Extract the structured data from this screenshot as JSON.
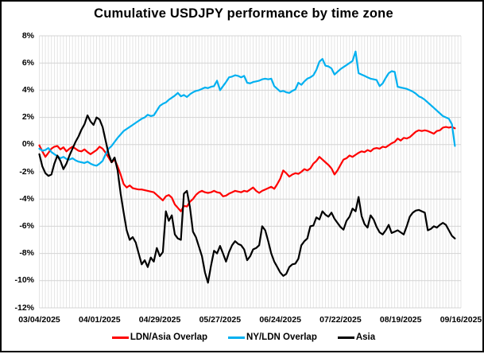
{
  "chart_data": {
    "type": "line",
    "title": "Cumulative USDJPY performance by time zone",
    "x_tick_labels": [
      "03/04/2025",
      "04/01/2025",
      "04/29/2025",
      "05/27/2025",
      "06/24/2025",
      "07/22/2025",
      "08/19/2025",
      "09/16/2025"
    ],
    "x_tick_every": 20,
    "n_categories": 141,
    "y_tick_labels": [
      "8%",
      "6%",
      "4%",
      "2%",
      "0%",
      "-2%",
      "-4%",
      "-6%",
      "-8%",
      "-10%",
      "-12%"
    ],
    "ylim": [
      -12,
      8
    ],
    "y_step": 2,
    "grid": {
      "vertical": "per-trading-day",
      "horizontal": "every-2-percent"
    },
    "legend_position": "bottom",
    "series": [
      {
        "name": "LDN/Asia Overlap",
        "color": "#fe0000",
        "values": [
          -0.05,
          -0.5,
          -0.9,
          -0.6,
          -0.3,
          -0.15,
          -0.1,
          -0.35,
          -0.2,
          -0.5,
          -0.3,
          -0.15,
          -0.3,
          -0.45,
          -0.5,
          -0.35,
          -0.55,
          -0.7,
          -0.55,
          -0.4,
          -0.15,
          -0.3,
          -0.6,
          -0.95,
          -1.3,
          -1.1,
          -1.6,
          -2.2,
          -2.9,
          -3.15,
          -3.0,
          -3.2,
          -3.25,
          -3.3,
          -3.3,
          -3.35,
          -3.4,
          -3.45,
          -3.5,
          -3.7,
          -3.9,
          -4.1,
          -3.8,
          -3.7,
          -3.9,
          -4.4,
          -4.65,
          -4.9,
          -4.5,
          -4.55,
          -4.2,
          -4.0,
          -3.7,
          -3.5,
          -3.4,
          -3.5,
          -3.55,
          -3.5,
          -3.4,
          -3.5,
          -3.55,
          -3.8,
          -3.75,
          -3.6,
          -3.5,
          -3.4,
          -3.45,
          -3.5,
          -3.4,
          -3.45,
          -3.3,
          -3.15,
          -3.4,
          -3.55,
          -3.4,
          -3.3,
          -3.2,
          -3.1,
          -3.25,
          -2.9,
          -2.5,
          -1.9,
          -2.1,
          -2.35,
          -2.2,
          -2.1,
          -2.15,
          -2.0,
          -1.8,
          -1.9,
          -1.75,
          -1.4,
          -1.2,
          -0.9,
          -1.1,
          -1.3,
          -1.5,
          -1.75,
          -2.2,
          -1.9,
          -1.5,
          -1.1,
          -1.0,
          -0.8,
          -0.9,
          -0.75,
          -0.6,
          -0.5,
          -0.55,
          -0.4,
          -0.5,
          -0.3,
          -0.25,
          -0.3,
          -0.15,
          -0.2,
          -0.05,
          0.1,
          0.2,
          0.45,
          0.3,
          0.5,
          0.45,
          0.55,
          0.75,
          0.95,
          1.05,
          1.0,
          1.05,
          1.0,
          0.9,
          0.8,
          1.0,
          1.05,
          1.25,
          1.3,
          1.25,
          1.3,
          1.2
        ]
      },
      {
        "name": "NY/LDN Overlap",
        "color": "#00b0f0",
        "values": [
          -0.3,
          -0.45,
          -0.4,
          -0.25,
          -0.55,
          -0.7,
          -0.85,
          -1.0,
          -0.9,
          -1.05,
          -1.1,
          -1.0,
          -1.15,
          -1.25,
          -1.3,
          -1.35,
          -1.25,
          -1.4,
          -1.5,
          -1.55,
          -1.4,
          -1.2,
          -0.7,
          -0.3,
          -0.1,
          0.2,
          0.5,
          0.75,
          1.0,
          1.15,
          1.3,
          1.45,
          1.6,
          1.75,
          1.9,
          2.0,
          2.2,
          2.1,
          2.15,
          2.5,
          2.85,
          3.0,
          3.1,
          3.3,
          3.45,
          3.6,
          3.8,
          3.55,
          3.65,
          3.5,
          3.7,
          3.85,
          3.95,
          4.0,
          4.1,
          4.2,
          4.15,
          4.25,
          4.3,
          4.7,
          4.0,
          4.3,
          4.6,
          4.95,
          5.0,
          5.1,
          5.05,
          4.95,
          5.05,
          4.55,
          4.5,
          4.6,
          4.65,
          4.7,
          4.8,
          4.85,
          4.8,
          4.85,
          4.3,
          4.1,
          3.9,
          3.95,
          3.85,
          3.8,
          3.95,
          4.05,
          4.55,
          4.4,
          4.65,
          4.85,
          4.95,
          5.1,
          5.5,
          6.1,
          6.3,
          5.8,
          5.75,
          5.6,
          5.15,
          5.35,
          5.55,
          5.7,
          5.85,
          6.0,
          6.15,
          6.85,
          5.25,
          5.15,
          5.05,
          4.95,
          4.85,
          4.8,
          4.75,
          4.3,
          4.5,
          4.9,
          5.25,
          5.4,
          5.35,
          4.25,
          4.2,
          4.15,
          4.1,
          4.0,
          3.9,
          3.75,
          3.55,
          3.45,
          3.3,
          3.1,
          2.9,
          2.7,
          2.5,
          2.3,
          2.1,
          2.0,
          1.9,
          1.5,
          -0.1
        ]
      },
      {
        "name": "Asia",
        "color": "#000000",
        "values": [
          -0.7,
          -1.6,
          -2.1,
          -2.3,
          -2.2,
          -1.4,
          -0.8,
          -1.2,
          -1.8,
          -1.4,
          -0.8,
          -0.3,
          0.2,
          0.6,
          1.1,
          1.5,
          2.15,
          1.7,
          1.45,
          2.0,
          1.85,
          1.3,
          0.3,
          -0.7,
          -1.3,
          -0.95,
          -1.9,
          -3.6,
          -5.0,
          -6.3,
          -7.0,
          -6.8,
          -7.2,
          -8.0,
          -8.8,
          -8.5,
          -9.0,
          -8.3,
          -8.6,
          -7.6,
          -8.2,
          -7.9,
          -4.9,
          -5.6,
          -5.2,
          -6.6,
          -6.9,
          -7.0,
          -3.6,
          -3.4,
          -4.6,
          -6.4,
          -6.8,
          -7.5,
          -8.2,
          -9.4,
          -10.15,
          -8.9,
          -7.8,
          -8.0,
          -7.45,
          -8.0,
          -8.6,
          -7.9,
          -7.4,
          -7.1,
          -7.3,
          -7.4,
          -7.7,
          -8.5,
          -8.2,
          -7.7,
          -7.6,
          -7.4,
          -6.0,
          -6.3,
          -7.1,
          -8.0,
          -8.6,
          -9.0,
          -9.4,
          -9.65,
          -9.5,
          -9.0,
          -8.8,
          -8.75,
          -8.4,
          -7.4,
          -7.1,
          -6.9,
          -6.0,
          -5.95,
          -5.35,
          -5.5,
          -4.9,
          -5.15,
          -5.3,
          -5.0,
          -5.45,
          -5.75,
          -6.05,
          -6.25,
          -5.6,
          -5.3,
          -4.7,
          -4.9,
          -3.85,
          -5.25,
          -5.85,
          -6.1,
          -5.2,
          -5.5,
          -6.05,
          -6.45,
          -6.6,
          -6.3,
          -5.9,
          -6.5,
          -6.4,
          -6.3,
          -6.45,
          -6.6,
          -6.0,
          -5.3,
          -5.0,
          -4.85,
          -4.8,
          -4.9,
          -5.0,
          -6.3,
          -6.2,
          -6.0,
          -6.1,
          -5.9,
          -5.75,
          -5.9,
          -6.3,
          -6.7,
          -6.9
        ]
      }
    ]
  }
}
